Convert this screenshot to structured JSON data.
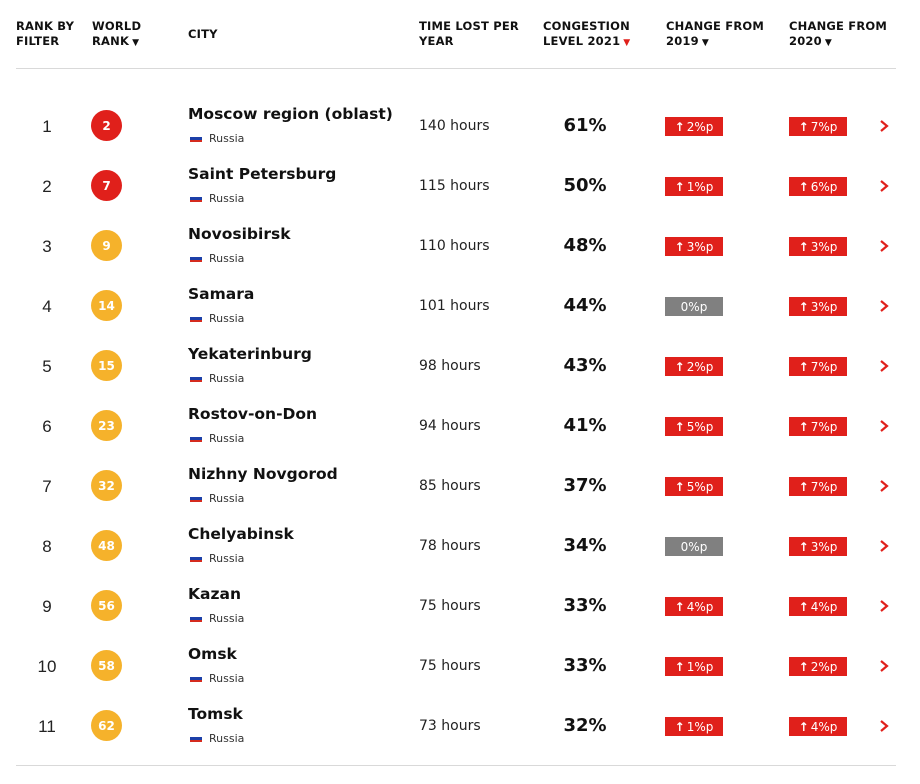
{
  "header": {
    "rank_by_filter": [
      "RANK BY",
      "FILTER"
    ],
    "world_rank": [
      "WORLD",
      "RANK"
    ],
    "city": "CITY",
    "time_lost": [
      "TIME LOST PER",
      "YEAR"
    ],
    "congestion": [
      "CONGESTION",
      "LEVEL 2021"
    ],
    "change_2019": [
      "CHANGE FROM",
      "2019"
    ],
    "change_2020": [
      "CHANGE FROM",
      "2020"
    ],
    "caret_icon": "▼"
  },
  "colors": {
    "badge_top": "#e0201b",
    "badge_other": "#f5b22b",
    "increase": "#e0201b",
    "neutral": "#808080",
    "accent": "#e0201b"
  },
  "rows": [
    {
      "rank": "1",
      "world_rank": "2",
      "badge_color": "#e0201b",
      "city": "Moscow region (oblast)",
      "country": "Russia",
      "time": "140 hours",
      "congestion": "61%",
      "change_2019": {
        "text": "2%p",
        "up": true
      },
      "change_2020": {
        "text": "7%p",
        "up": true
      }
    },
    {
      "rank": "2",
      "world_rank": "7",
      "badge_color": "#e0201b",
      "city": "Saint Petersburg",
      "country": "Russia",
      "time": "115 hours",
      "congestion": "50%",
      "change_2019": {
        "text": "1%p",
        "up": true
      },
      "change_2020": {
        "text": "6%p",
        "up": true
      }
    },
    {
      "rank": "3",
      "world_rank": "9",
      "badge_color": "#f5b22b",
      "city": "Novosibirsk",
      "country": "Russia",
      "time": "110 hours",
      "congestion": "48%",
      "change_2019": {
        "text": "3%p",
        "up": true
      },
      "change_2020": {
        "text": "3%p",
        "up": true
      }
    },
    {
      "rank": "4",
      "world_rank": "14",
      "badge_color": "#f5b22b",
      "city": "Samara",
      "country": "Russia",
      "time": "101 hours",
      "congestion": "44%",
      "change_2019": {
        "text": "0%p",
        "up": false
      },
      "change_2020": {
        "text": "3%p",
        "up": true
      }
    },
    {
      "rank": "5",
      "world_rank": "15",
      "badge_color": "#f5b22b",
      "city": "Yekaterinburg",
      "country": "Russia",
      "time": "98 hours",
      "congestion": "43%",
      "change_2019": {
        "text": "2%p",
        "up": true
      },
      "change_2020": {
        "text": "7%p",
        "up": true
      }
    },
    {
      "rank": "6",
      "world_rank": "23",
      "badge_color": "#f5b22b",
      "city": "Rostov-on-Don",
      "country": "Russia",
      "time": "94 hours",
      "congestion": "41%",
      "change_2019": {
        "text": "5%p",
        "up": true
      },
      "change_2020": {
        "text": "7%p",
        "up": true
      }
    },
    {
      "rank": "7",
      "world_rank": "32",
      "badge_color": "#f5b22b",
      "city": "Nizhny Novgorod",
      "country": "Russia",
      "time": "85 hours",
      "congestion": "37%",
      "change_2019": {
        "text": "5%p",
        "up": true
      },
      "change_2020": {
        "text": "7%p",
        "up": true
      }
    },
    {
      "rank": "8",
      "world_rank": "48",
      "badge_color": "#f5b22b",
      "city": "Chelyabinsk",
      "country": "Russia",
      "time": "78 hours",
      "congestion": "34%",
      "change_2019": {
        "text": "0%p",
        "up": false
      },
      "change_2020": {
        "text": "3%p",
        "up": true
      }
    },
    {
      "rank": "9",
      "world_rank": "56",
      "badge_color": "#f5b22b",
      "city": "Kazan",
      "country": "Russia",
      "time": "75 hours",
      "congestion": "33%",
      "change_2019": {
        "text": "4%p",
        "up": true
      },
      "change_2020": {
        "text": "4%p",
        "up": true
      }
    },
    {
      "rank": "10",
      "world_rank": "58",
      "badge_color": "#f5b22b",
      "city": "Omsk",
      "country": "Russia",
      "time": "75 hours",
      "congestion": "33%",
      "change_2019": {
        "text": "1%p",
        "up": true
      },
      "change_2020": {
        "text": "2%p",
        "up": true
      }
    },
    {
      "rank": "11",
      "world_rank": "62",
      "badge_color": "#f5b22b",
      "city": "Tomsk",
      "country": "Russia",
      "time": "73 hours",
      "congestion": "32%",
      "change_2019": {
        "text": "1%p",
        "up": true
      },
      "change_2020": {
        "text": "4%p",
        "up": true
      }
    }
  ],
  "icons": {
    "flag": "russia-flag-icon",
    "up_arrow": "↑",
    "row_chevron": "chevron-right-icon"
  }
}
